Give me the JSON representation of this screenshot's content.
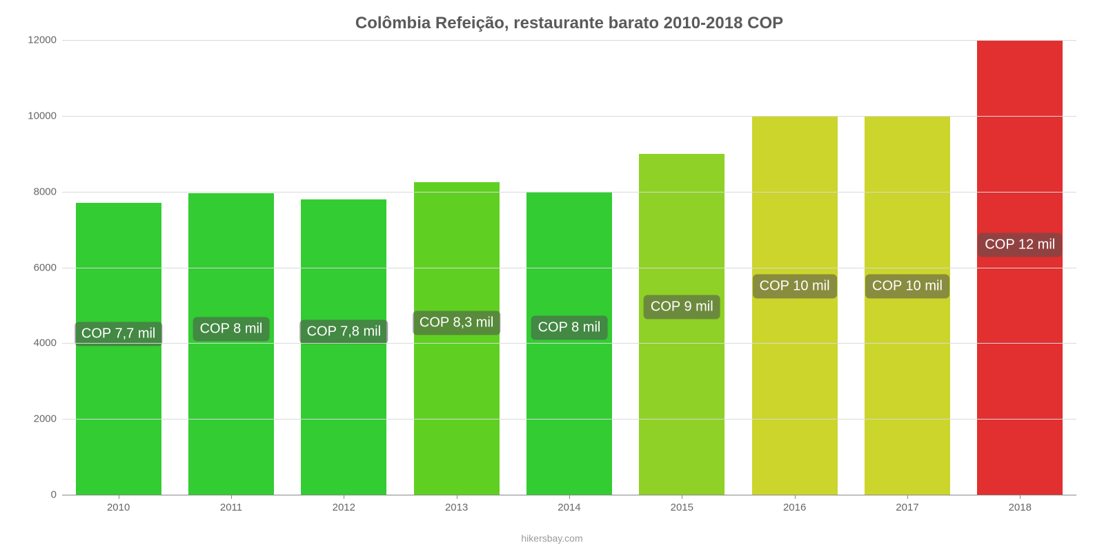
{
  "chart": {
    "type": "bar",
    "title": "Colômbia Refeição, restaurante barato 2010-2018 COP",
    "title_fontsize": 24,
    "title_color": "#5a5a5a",
    "background_color": "#ffffff",
    "grid_color": "#d9d9d9",
    "axis_color": "#888888",
    "tick_label_color": "#666666",
    "tick_fontsize": 15,
    "ylim": [
      0,
      12000
    ],
    "ytick_step": 2000,
    "yticks": [
      0,
      2000,
      4000,
      6000,
      8000,
      10000,
      12000
    ],
    "bar_width": 0.76,
    "data_label_bg": "rgba(80,80,80,0.55)",
    "data_label_color": "#ffffff",
    "data_label_fontsize": 20,
    "categories": [
      "2010",
      "2011",
      "2012",
      "2013",
      "2014",
      "2015",
      "2016",
      "2017",
      "2018"
    ],
    "values": [
      7700,
      7950,
      7800,
      8250,
      8000,
      9000,
      10000,
      10000,
      12000
    ],
    "bar_colors": [
      "#33cc33",
      "#33cc33",
      "#33cc33",
      "#5fd021",
      "#33cc33",
      "#8fd126",
      "#ccd52b",
      "#ccd52b",
      "#e22f2f"
    ],
    "data_labels": [
      "COP 7,7 mil",
      "COP 8 mil",
      "COP 7,8 mil",
      "COP 8,3 mil",
      "COP 8 mil",
      "COP 9 mil",
      "COP 10 mil",
      "COP 10 mil",
      "COP 12 mil"
    ],
    "watermark": "hikersbay.com",
    "watermark_color": "#9a9a9a",
    "watermark_fontsize": 14
  }
}
